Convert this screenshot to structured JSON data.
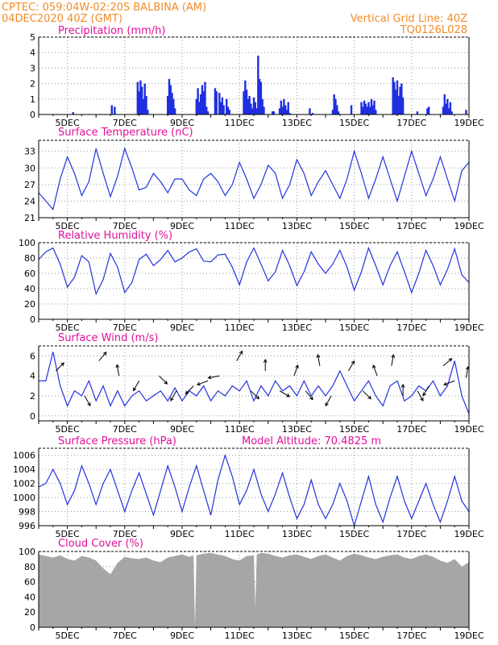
{
  "header": {
    "line1_left": "CPTEC:   059:04W-02:20S   BALBINA (AM)",
    "line2_left": "04DEC2020 40Z (GMT)",
    "line2_right": "Vertical Grid Line: 40Z",
    "line3_right": "TQ0126L028"
  },
  "colors": {
    "header": "#f28c28",
    "title": "#e0109a",
    "line": "#2233dd",
    "bar": "#1f2fe0",
    "cloud": "#a6a6a6",
    "arrow": "#000000"
  },
  "x_dates": [
    "5DEC",
    "7DEC",
    "9DEC",
    "11DEC",
    "13DEC",
    "15DEC",
    "17DEC",
    "19DEC"
  ],
  "chart_data": [
    {
      "type": "bar",
      "title": "Precipitation (mm/h)",
      "ylim": [
        0,
        5
      ],
      "yticks": [
        0,
        1,
        2,
        3,
        4,
        5
      ],
      "xlim": [
        4.0,
        19.0
      ],
      "series": [
        {
          "x": [
            5.2,
            6.55,
            6.65,
            7.45,
            7.5,
            7.55,
            7.6,
            7.65,
            7.7,
            7.75,
            7.8,
            8.5,
            8.55,
            8.6,
            8.65,
            8.7,
            8.75,
            9.5,
            9.55,
            9.6,
            9.65,
            9.7,
            9.75,
            9.8,
            9.85,
            9.9,
            10.15,
            10.2,
            10.3,
            10.35,
            10.4,
            10.45,
            10.55,
            10.6,
            10.65,
            11.15,
            11.2,
            11.25,
            11.3,
            11.35,
            11.4,
            11.45,
            11.5,
            11.55,
            11.6,
            11.65,
            11.7,
            11.75,
            11.8,
            11.85,
            12.15,
            12.2,
            12.4,
            12.45,
            12.5,
            12.55,
            12.6,
            12.65,
            12.7,
            12.75,
            13.45,
            13.55,
            14.25,
            14.3,
            14.35,
            14.4,
            14.45,
            14.9,
            15.25,
            15.3,
            15.35,
            15.4,
            15.45,
            15.5,
            15.55,
            15.6,
            15.65,
            15.7,
            15.75,
            16.35,
            16.4,
            16.45,
            16.5,
            16.55,
            16.6,
            16.65,
            16.7,
            17.2,
            17.55,
            17.6,
            18.1,
            18.15,
            18.2,
            18.25,
            18.3,
            18.35,
            18.4,
            18.9
          ],
          "values": [
            0.15,
            0.6,
            0.5,
            2.1,
            1.5,
            2.2,
            1.8,
            1.0,
            2.0,
            1.2,
            0.3,
            1.2,
            2.3,
            1.9,
            1.4,
            1.0,
            0.4,
            1.0,
            1.7,
            0.8,
            1.3,
            1.9,
            1.5,
            2.1,
            0.5,
            0.2,
            1.7,
            1.5,
            1.4,
            0.8,
            1.1,
            0.6,
            1.0,
            0.5,
            0.3,
            1.5,
            2.2,
            1.6,
            1.0,
            1.2,
            0.7,
            0.4,
            1.1,
            0.8,
            0.4,
            3.8,
            2.3,
            2.1,
            1.0,
            0.5,
            0.2,
            0.2,
            0.4,
            0.9,
            0.5,
            1.0,
            0.6,
            0.3,
            0.8,
            0.1,
            0.4,
            0.1,
            0.3,
            1.3,
            1.0,
            0.6,
            0.2,
            0.6,
            0.8,
            0.5,
            0.9,
            0.7,
            0.5,
            0.8,
            0.5,
            1.0,
            0.6,
            0.9,
            0.3,
            2.4,
            2.1,
            1.6,
            2.2,
            1.2,
            1.8,
            2.0,
            1.1,
            0.2,
            0.4,
            0.5,
            0.5,
            1.3,
            0.7,
            1.0,
            0.4,
            0.8,
            0.2,
            0.3
          ]
        }
      ]
    },
    {
      "type": "line",
      "title": "Surface Temperature (nC)",
      "ylim": [
        21,
        35
      ],
      "yticks": [
        21,
        24,
        27,
        30,
        33
      ],
      "xlim": [
        4.0,
        19.0
      ],
      "series": [
        {
          "x": [
            4.0,
            4.25,
            4.5,
            4.75,
            5.0,
            5.25,
            5.5,
            5.75,
            6.0,
            6.25,
            6.5,
            6.75,
            7.0,
            7.25,
            7.5,
            7.75,
            8.0,
            8.25,
            8.5,
            8.75,
            9.0,
            9.25,
            9.5,
            9.75,
            10.0,
            10.25,
            10.5,
            10.75,
            11.0,
            11.25,
            11.5,
            11.75,
            12.0,
            12.25,
            12.5,
            12.75,
            13.0,
            13.25,
            13.5,
            13.75,
            14.0,
            14.25,
            14.5,
            14.75,
            15.0,
            15.25,
            15.5,
            15.75,
            16.0,
            16.25,
            16.5,
            16.75,
            17.0,
            17.25,
            17.5,
            17.75,
            18.0,
            18.25,
            18.5,
            18.75,
            19.0
          ],
          "values": [
            25.5,
            24.0,
            22.5,
            28.0,
            32.0,
            29.0,
            25.0,
            27.5,
            33.5,
            29.0,
            24.8,
            28.5,
            33.5,
            30.0,
            26.0,
            26.5,
            29.0,
            27.5,
            25.5,
            28.0,
            28.0,
            26.0,
            25.0,
            28.0,
            29.0,
            27.5,
            25.0,
            27.0,
            31.0,
            28.0,
            24.5,
            27.0,
            30.5,
            29.0,
            24.5,
            27.0,
            31.5,
            29.0,
            25.0,
            27.5,
            29.5,
            27.0,
            24.5,
            28.0,
            33.0,
            29.0,
            24.5,
            28.0,
            32.0,
            28.0,
            24.0,
            28.5,
            33.0,
            29.0,
            25.0,
            28.0,
            32.0,
            28.0,
            24.0,
            29.5,
            31.0
          ]
        }
      ]
    },
    {
      "type": "line",
      "title": "Relative Humidity (%)",
      "ylim": [
        0,
        100
      ],
      "yticks": [
        0,
        20,
        40,
        60,
        80,
        100
      ],
      "xlim": [
        4.0,
        19.0
      ],
      "series": [
        {
          "x": [
            4.0,
            4.25,
            4.5,
            4.75,
            5.0,
            5.25,
            5.5,
            5.75,
            6.0,
            6.25,
            6.5,
            6.75,
            7.0,
            7.25,
            7.5,
            7.75,
            8.0,
            8.25,
            8.5,
            8.75,
            9.0,
            9.25,
            9.5,
            9.75,
            10.0,
            10.25,
            10.5,
            10.75,
            11.0,
            11.25,
            11.5,
            11.75,
            12.0,
            12.25,
            12.5,
            12.75,
            13.0,
            13.25,
            13.5,
            13.75,
            14.0,
            14.25,
            14.5,
            14.75,
            15.0,
            15.25,
            15.5,
            15.75,
            16.0,
            16.25,
            16.5,
            16.75,
            17.0,
            17.25,
            17.5,
            17.75,
            18.0,
            18.25,
            18.5,
            18.75,
            19.0
          ],
          "values": [
            78,
            88,
            93,
            72,
            42,
            55,
            83,
            75,
            33,
            52,
            86,
            68,
            35,
            48,
            78,
            85,
            70,
            78,
            90,
            75,
            80,
            88,
            92,
            76,
            75,
            84,
            85,
            68,
            45,
            75,
            93,
            72,
            50,
            62,
            90,
            70,
            44,
            62,
            88,
            72,
            60,
            72,
            90,
            68,
            38,
            62,
            93,
            70,
            45,
            70,
            88,
            62,
            35,
            60,
            90,
            70,
            45,
            65,
            92,
            58,
            48
          ]
        }
      ]
    },
    {
      "type": "line",
      "title": "Surface Wind (m/s)",
      "ylim": [
        -0.5,
        7
      ],
      "yticks": [
        0,
        2,
        4,
        6
      ],
      "xlim": [
        4.0,
        19.0
      ],
      "series": [
        {
          "x": [
            4.0,
            4.25,
            4.5,
            4.75,
            5.0,
            5.25,
            5.5,
            5.75,
            6.0,
            6.25,
            6.5,
            6.75,
            7.0,
            7.25,
            7.5,
            7.75,
            8.0,
            8.25,
            8.5,
            8.75,
            9.0,
            9.25,
            9.5,
            9.75,
            10.0,
            10.25,
            10.5,
            10.75,
            11.0,
            11.25,
            11.5,
            11.75,
            12.0,
            12.25,
            12.5,
            12.75,
            13.0,
            13.25,
            13.5,
            13.75,
            14.0,
            14.25,
            14.5,
            14.75,
            15.0,
            15.25,
            15.5,
            15.75,
            16.0,
            16.25,
            16.5,
            16.75,
            17.0,
            17.25,
            17.5,
            17.75,
            18.0,
            18.25,
            18.5,
            18.75,
            19.0
          ],
          "values": [
            3.5,
            3.5,
            6.4,
            3.0,
            1.0,
            2.5,
            2.0,
            3.5,
            1.5,
            3.0,
            1.0,
            2.5,
            1.0,
            2.0,
            2.5,
            1.5,
            2.0,
            2.5,
            1.5,
            2.8,
            1.5,
            2.5,
            2.0,
            3.0,
            1.5,
            2.5,
            2.0,
            3.0,
            2.5,
            3.5,
            1.5,
            3.0,
            2.0,
            3.5,
            2.5,
            3.0,
            2.0,
            3.5,
            2.0,
            3.0,
            2.0,
            3.0,
            4.5,
            3.0,
            1.5,
            2.5,
            3.5,
            2.0,
            1.0,
            3.0,
            3.5,
            1.5,
            2.0,
            3.0,
            2.5,
            3.5,
            2.0,
            3.0,
            5.5,
            2.0,
            0.2
          ]
        }
      ],
      "wind_arrows": [
        {
          "x": 4.6,
          "y": 4.5,
          "angle": -45
        },
        {
          "x": 5.6,
          "y": 2.0,
          "angle": 60
        },
        {
          "x": 6.1,
          "y": 5.5,
          "angle": -50
        },
        {
          "x": 6.8,
          "y": 4.0,
          "angle": -100
        },
        {
          "x": 7.5,
          "y": 3.5,
          "angle": 120
        },
        {
          "x": 8.2,
          "y": 4.0,
          "angle": 45
        },
        {
          "x": 8.8,
          "y": 2.5,
          "angle": 120
        },
        {
          "x": 9.4,
          "y": 3.0,
          "angle": 135
        },
        {
          "x": 9.9,
          "y": 3.5,
          "angle": 160
        },
        {
          "x": 10.3,
          "y": 4.0,
          "angle": 170
        },
        {
          "x": 10.9,
          "y": 5.5,
          "angle": -60
        },
        {
          "x": 11.4,
          "y": 2.5,
          "angle": 45
        },
        {
          "x": 11.9,
          "y": 4.5,
          "angle": -90
        },
        {
          "x": 12.4,
          "y": 2.5,
          "angle": 30
        },
        {
          "x": 12.9,
          "y": 4.0,
          "angle": -70
        },
        {
          "x": 13.3,
          "y": 2.5,
          "angle": 50
        },
        {
          "x": 13.8,
          "y": 5.0,
          "angle": -100
        },
        {
          "x": 14.2,
          "y": 2.0,
          "angle": 120
        },
        {
          "x": 14.8,
          "y": 4.5,
          "angle": -60
        },
        {
          "x": 15.3,
          "y": 2.5,
          "angle": 45
        },
        {
          "x": 15.8,
          "y": 4.0,
          "angle": -110
        },
        {
          "x": 16.3,
          "y": 5.0,
          "angle": -80
        },
        {
          "x": 16.7,
          "y": 2.0,
          "angle": -90
        },
        {
          "x": 17.2,
          "y": 2.5,
          "angle": 60
        },
        {
          "x": 17.6,
          "y": 3.0,
          "angle": 120
        },
        {
          "x": 18.1,
          "y": 5.0,
          "angle": -40
        },
        {
          "x": 18.5,
          "y": 3.5,
          "angle": 160
        },
        {
          "x": 18.9,
          "y": 3.8,
          "angle": -80
        }
      ]
    },
    {
      "type": "line",
      "title": "Surface Pressure (hPa)",
      "annotation": "Model Altitude: 70.4825 m",
      "ylim": [
        996,
        1007
      ],
      "yticks": [
        996,
        998,
        1000,
        1002,
        1004,
        1006
      ],
      "xlim": [
        4.0,
        19.0
      ],
      "series": [
        {
          "x": [
            4.0,
            4.25,
            4.5,
            4.75,
            5.0,
            5.25,
            5.5,
            5.75,
            6.0,
            6.25,
            6.5,
            6.75,
            7.0,
            7.25,
            7.5,
            7.75,
            8.0,
            8.25,
            8.5,
            8.75,
            9.0,
            9.25,
            9.5,
            9.75,
            10.0,
            10.25,
            10.5,
            10.75,
            11.0,
            11.25,
            11.5,
            11.75,
            12.0,
            12.25,
            12.5,
            12.75,
            13.0,
            13.25,
            13.5,
            13.75,
            14.0,
            14.25,
            14.5,
            14.75,
            15.0,
            15.25,
            15.5,
            15.75,
            16.0,
            16.25,
            16.5,
            16.75,
            17.0,
            17.25,
            17.5,
            17.75,
            18.0,
            18.25,
            18.5,
            18.75,
            19.0
          ],
          "values": [
            1001.5,
            1002.0,
            1004.0,
            1002.0,
            999.0,
            1001.0,
            1004.5,
            1002.0,
            999.0,
            1002.0,
            1004.0,
            1001.0,
            998.0,
            1001.0,
            1003.5,
            1000.5,
            997.5,
            1001.0,
            1004.5,
            1001.5,
            998.0,
            1001.5,
            1004.5,
            1001.0,
            997.5,
            1002.5,
            1006.0,
            1003.0,
            999.0,
            1001.0,
            1004.0,
            1000.5,
            998.0,
            1000.5,
            1003.5,
            1000.0,
            997.0,
            999.0,
            1002.5,
            999.0,
            997.0,
            999.0,
            1002.0,
            999.5,
            996.0,
            999.5,
            1003.0,
            999.0,
            996.5,
            1000.0,
            1003.0,
            999.5,
            997.0,
            999.5,
            1002.0,
            999.0,
            996.5,
            999.5,
            1003.0,
            999.5,
            998.0
          ]
        }
      ]
    },
    {
      "type": "area",
      "title": "Cloud Cover (%)",
      "ylim": [
        0,
        100
      ],
      "yticks": [
        0,
        20,
        40,
        60,
        80,
        100
      ],
      "xlim": [
        4.0,
        19.0
      ],
      "series": [
        {
          "x": [
            4.0,
            4.25,
            4.5,
            4.75,
            5.0,
            5.25,
            5.5,
            5.75,
            6.0,
            6.25,
            6.5,
            6.75,
            7.0,
            7.25,
            7.5,
            7.75,
            8.0,
            8.25,
            8.5,
            8.75,
            9.0,
            9.25,
            9.4,
            9.45,
            9.5,
            9.75,
            10.0,
            10.25,
            10.5,
            10.75,
            11.0,
            11.25,
            11.5,
            11.55,
            11.6,
            11.75,
            12.0,
            12.25,
            12.5,
            12.75,
            13.0,
            13.25,
            13.5,
            13.75,
            14.0,
            14.25,
            14.5,
            14.75,
            15.0,
            15.25,
            15.5,
            15.75,
            16.0,
            16.25,
            16.5,
            16.75,
            17.0,
            17.25,
            17.5,
            17.75,
            18.0,
            18.25,
            18.5,
            18.75,
            19.0
          ],
          "values": [
            96,
            94,
            92,
            95,
            90,
            88,
            94,
            92,
            88,
            78,
            70,
            85,
            93,
            91,
            90,
            92,
            88,
            86,
            92,
            94,
            96,
            93,
            95,
            0,
            95,
            97,
            98,
            96,
            94,
            90,
            88,
            94,
            95,
            25,
            96,
            98,
            97,
            94,
            92,
            95,
            96,
            93,
            90,
            94,
            96,
            92,
            88,
            94,
            97,
            95,
            92,
            90,
            93,
            95,
            96,
            92,
            90,
            94,
            96,
            93,
            88,
            85,
            90,
            80,
            86
          ]
        }
      ]
    }
  ]
}
